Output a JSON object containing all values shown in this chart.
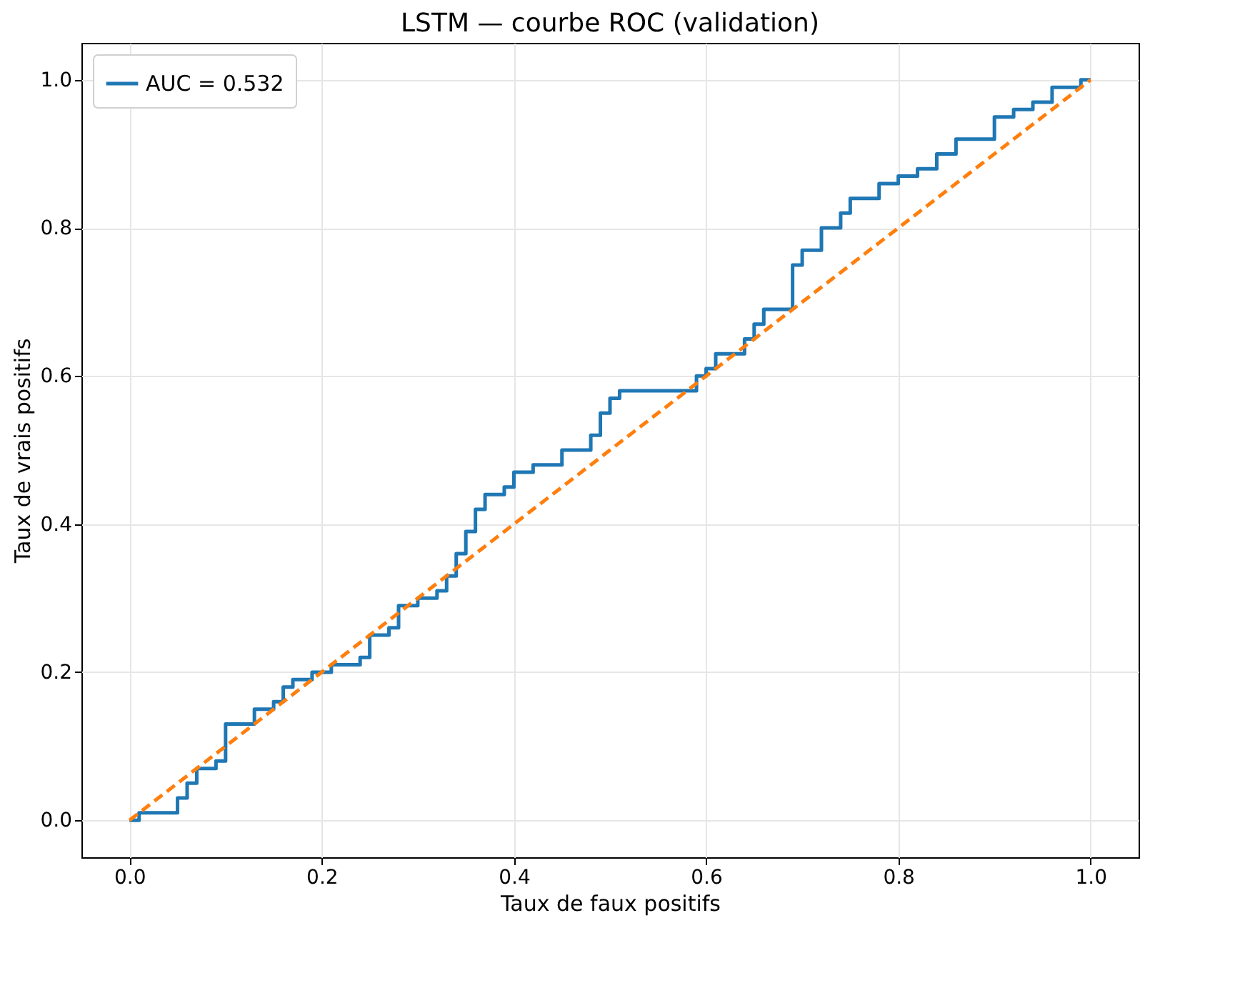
{
  "chart_data": {
    "type": "line",
    "title": "LSTM — courbe ROC (validation)",
    "xlabel": "Taux de faux positifs",
    "ylabel": "Taux de vrais positifs",
    "xlim": [
      -0.05,
      1.05
    ],
    "ylim": [
      -0.05,
      1.05
    ],
    "xticks": [
      {
        "value": 0,
        "label": "0.0"
      },
      {
        "value": 0.2,
        "label": "0.2"
      },
      {
        "value": 0.4,
        "label": "0.4"
      },
      {
        "value": 0.6,
        "label": "0.6"
      },
      {
        "value": 0.8,
        "label": "0.8"
      },
      {
        "value": 1,
        "label": "1.0"
      }
    ],
    "yticks": [
      {
        "value": 0,
        "label": "0.0"
      },
      {
        "value": 0.2,
        "label": "0.2"
      },
      {
        "value": 0.4,
        "label": "0.4"
      },
      {
        "value": 0.6,
        "label": "0.6"
      },
      {
        "value": 0.8,
        "label": "0.8"
      },
      {
        "value": 1,
        "label": "1.0"
      }
    ],
    "grid": true,
    "legend": "top left",
    "series": [
      {
        "name": "AUC = 0.532",
        "type": "step",
        "color": "#1f77b4",
        "line_style": "solid",
        "x": [
          0,
          0.01,
          0.04,
          0.05,
          0.06,
          0.07,
          0.09,
          0.1,
          0.1,
          0.12,
          0.13,
          0.15,
          0.16,
          0.17,
          0.19,
          0.21,
          0.24,
          0.25,
          0.27,
          0.28,
          0.3,
          0.32,
          0.33,
          0.34,
          0.35,
          0.36,
          0.37,
          0.39,
          0.4,
          0.42,
          0.45,
          0.48,
          0.49,
          0.5,
          0.51,
          0.57,
          0.59,
          0.6,
          0.61,
          0.64,
          0.65,
          0.66,
          0.68,
          0.69,
          0.69,
          0.7,
          0.72,
          0.74,
          0.75,
          0.77,
          0.78,
          0.8,
          0.82,
          0.84,
          0.86,
          0.89,
          0.9,
          0.92,
          0.94,
          0.96,
          0.98,
          0.99,
          1
        ],
        "values": [
          0,
          0.01,
          0.01,
          0.03,
          0.05,
          0.07,
          0.08,
          0.1,
          0.13,
          0.13,
          0.15,
          0.16,
          0.18,
          0.19,
          0.2,
          0.21,
          0.22,
          0.25,
          0.26,
          0.29,
          0.3,
          0.31,
          0.33,
          0.36,
          0.39,
          0.42,
          0.44,
          0.45,
          0.47,
          0.48,
          0.5,
          0.52,
          0.55,
          0.57,
          0.58,
          0.58,
          0.6,
          0.61,
          0.63,
          0.65,
          0.67,
          0.69,
          0.69,
          0.71,
          0.75,
          0.77,
          0.8,
          0.82,
          0.84,
          0.84,
          0.86,
          0.87,
          0.88,
          0.9,
          0.92,
          0.92,
          0.95,
          0.96,
          0.97,
          0.99,
          0.99,
          1,
          1
        ]
      },
      {
        "color": "#ff7f0e",
        "line_style": "dashed",
        "x": [
          0,
          1
        ],
        "values": [
          0,
          1
        ]
      }
    ]
  }
}
